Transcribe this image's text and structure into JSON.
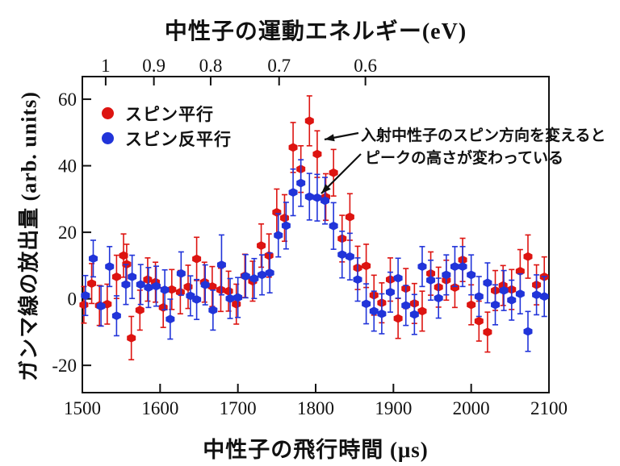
{
  "figure": {
    "background": "#ffffff",
    "top_title": "中性子の運動エネルギー(eV)",
    "bottom_title": "中性子の飛行時間 (μs)",
    "left_title": "ガンマ線の放出量 (arb. units)"
  },
  "legend": {
    "items": [
      {
        "label": "スピン平行",
        "color": "#dd1411",
        "marker": "circle"
      },
      {
        "label": "スピン反平行",
        "color": "#2134d9",
        "marker": "circle"
      }
    ]
  },
  "annotation": {
    "line1": "入射中性子のスピン方向を変えると",
    "line2": "ピークの高さが変わっている"
  },
  "chart_data": {
    "type": "scatter",
    "title": "中性子の運動エネルギー(eV)",
    "xlabel": "中性子の飛行時間 (μs)",
    "ylabel": "ガンマ線の放出量 (arb. units)",
    "grid": false,
    "legend_position": "upper-left",
    "x_axis": {
      "range": [
        1500,
        2100
      ],
      "ticks": [
        1500,
        1600,
        1700,
        1800,
        1900,
        2000,
        2100
      ]
    },
    "y_axis": {
      "range": [
        -28.2,
        66.8
      ],
      "ticks": [
        -20,
        0,
        20,
        40,
        60
      ]
    },
    "top_axis": {
      "label": "中性子の運動エネルギー(eV)",
      "ticks": [
        {
          "label": "1",
          "tof": 1530
        },
        {
          "label": "0.9",
          "tof": 1592
        },
        {
          "label": "0.8",
          "tof": 1665
        },
        {
          "label": "0.7",
          "tof": 1753
        },
        {
          "label": "0.6",
          "tof": 1864
        }
      ]
    },
    "series": [
      {
        "name": "スピン平行",
        "color": "#dd1411",
        "points": [
          [
            1502,
            -1.8,
            5.5
          ],
          [
            1512,
            4.6,
            6
          ],
          [
            1522,
            -2.0,
            6
          ],
          [
            1532,
            -1.6,
            6
          ],
          [
            1544,
            6.6,
            6.5
          ],
          [
            1553,
            13.0,
            6.5
          ],
          [
            1557,
            10.4,
            6
          ],
          [
            1563,
            -11.8,
            6.5
          ],
          [
            1574,
            -3.4,
            6
          ],
          [
            1584,
            5.8,
            6.5
          ],
          [
            1594,
            5.0,
            6
          ],
          [
            1604,
            -2.6,
            6
          ],
          [
            1615,
            2.8,
            6
          ],
          [
            1626,
            2.0,
            6.5
          ],
          [
            1636,
            3.6,
            6.5
          ],
          [
            1647,
            12.0,
            6.5
          ],
          [
            1657,
            5.0,
            6
          ],
          [
            1667,
            3.7,
            6
          ],
          [
            1678,
            2.7,
            6.5
          ],
          [
            1688,
            2.3,
            6
          ],
          [
            1698,
            -1.6,
            6
          ],
          [
            1709,
            6.9,
            6.5
          ],
          [
            1719,
            5.3,
            6
          ],
          [
            1730,
            16.0,
            6.5
          ],
          [
            1740,
            13.0,
            6.5
          ],
          [
            1750,
            26.0,
            7
          ],
          [
            1760,
            24.3,
            7
          ],
          [
            1771,
            45.5,
            7.5
          ],
          [
            1781,
            39.0,
            7
          ],
          [
            1792,
            53.5,
            7.5
          ],
          [
            1802,
            43.5,
            7
          ],
          [
            1813,
            30.6,
            7
          ],
          [
            1823,
            37.9,
            7
          ],
          [
            1834,
            18.1,
            7
          ],
          [
            1844,
            24.6,
            7
          ],
          [
            1854,
            9.3,
            6.5
          ],
          [
            1865,
            9.9,
            6.5
          ],
          [
            1875,
            1.1,
            6
          ],
          [
            1885,
            -1.2,
            6
          ],
          [
            1896,
            5.8,
            6.5
          ],
          [
            1906,
            -5.9,
            6
          ],
          [
            1916,
            3.1,
            6
          ],
          [
            1927,
            -1.4,
            6
          ],
          [
            1937,
            -3.7,
            6
          ],
          [
            1948,
            7.6,
            6.5
          ],
          [
            1958,
            3.5,
            6
          ],
          [
            1968,
            5.6,
            6
          ],
          [
            1979,
            3.4,
            6
          ],
          [
            1989,
            11.7,
            6.5
          ],
          [
            2000,
            -1.8,
            6
          ],
          [
            2010,
            -6.7,
            6
          ],
          [
            2021,
            -10.0,
            6
          ],
          [
            2031,
            2.5,
            6
          ],
          [
            2041,
            4.0,
            6
          ],
          [
            2052,
            2.8,
            6
          ],
          [
            2063,
            8.3,
            6.5
          ],
          [
            2073,
            12.7,
            6.5
          ],
          [
            2084,
            4.2,
            6
          ],
          [
            2094,
            6.6,
            6
          ]
        ]
      },
      {
        "name": "スピン反平行",
        "color": "#2134d9",
        "points": [
          [
            1504,
            1.0,
            6
          ],
          [
            1514,
            12.1,
            5.5
          ],
          [
            1524,
            -2.2,
            6
          ],
          [
            1535,
            9.7,
            6
          ],
          [
            1544,
            -5.1,
            6
          ],
          [
            1556,
            4.3,
            6
          ],
          [
            1564,
            6.6,
            6.5
          ],
          [
            1575,
            4.3,
            6
          ],
          [
            1585,
            3.4,
            6
          ],
          [
            1595,
            3.8,
            6
          ],
          [
            1606,
            2.7,
            6
          ],
          [
            1613,
            -6.1,
            6
          ],
          [
            1627,
            7.6,
            6.5
          ],
          [
            1639,
            0.9,
            6
          ],
          [
            1647,
            -0.2,
            6
          ],
          [
            1658,
            4.2,
            6
          ],
          [
            1668,
            -3.4,
            6
          ],
          [
            1679,
            10.2,
            9
          ],
          [
            1690,
            0.1,
            6
          ],
          [
            1700,
            0.4,
            6
          ],
          [
            1710,
            6.8,
            6.5
          ],
          [
            1721,
            6.1,
            6
          ],
          [
            1731,
            7.2,
            6
          ],
          [
            1741,
            7.8,
            6
          ],
          [
            1752,
            19.1,
            6.5
          ],
          [
            1762,
            22.0,
            7
          ],
          [
            1771,
            32.0,
            7
          ],
          [
            1781,
            34.8,
            7
          ],
          [
            1792,
            30.7,
            7
          ],
          [
            1802,
            30.4,
            7
          ],
          [
            1812,
            29.5,
            7
          ],
          [
            1823,
            21.9,
            7
          ],
          [
            1834,
            13.3,
            7
          ],
          [
            1844,
            12.7,
            7
          ],
          [
            1854,
            5.8,
            6.5
          ],
          [
            1865,
            -1.5,
            6
          ],
          [
            1875,
            -3.7,
            6
          ],
          [
            1885,
            -4.5,
            6
          ],
          [
            1896,
            2.0,
            6
          ],
          [
            1906,
            6.2,
            6
          ],
          [
            1916,
            -2.0,
            6
          ],
          [
            1927,
            -4.7,
            6
          ],
          [
            1937,
            9.7,
            6
          ],
          [
            1948,
            5.6,
            6
          ],
          [
            1958,
            0.2,
            6
          ],
          [
            1968,
            7.2,
            6
          ],
          [
            1979,
            9.7,
            6
          ],
          [
            1989,
            9.7,
            6
          ],
          [
            2000,
            7.2,
            6
          ],
          [
            2010,
            0.7,
            6
          ],
          [
            2021,
            4.8,
            6
          ],
          [
            2031,
            -1.8,
            6
          ],
          [
            2042,
            2.5,
            6
          ],
          [
            2052,
            -0.4,
            6
          ],
          [
            2063,
            1.5,
            6
          ],
          [
            2073,
            -9.8,
            6
          ],
          [
            2084,
            1.2,
            6
          ],
          [
            2094,
            0.7,
            6
          ]
        ]
      }
    ],
    "annotations": [
      {
        "text": "入射中性子のスピン方向を変えると",
        "arrow_points_to": "red peak point near 1800 μs"
      },
      {
        "text": "ピークの高さが変わっている",
        "arrow_points_to": "blue peak point near 1800 μs"
      }
    ]
  }
}
